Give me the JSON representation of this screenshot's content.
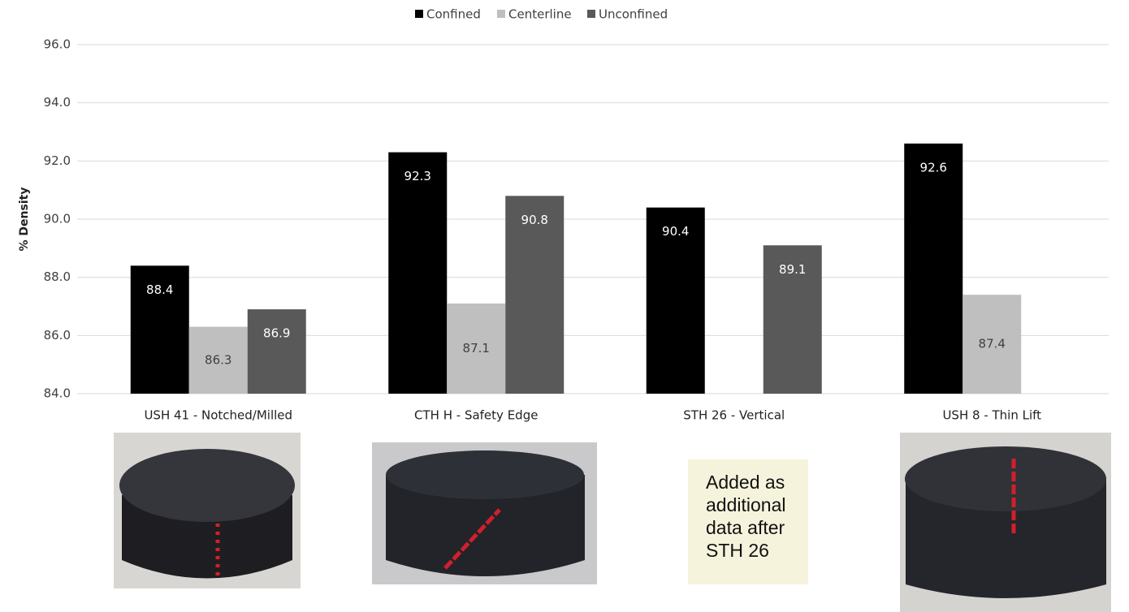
{
  "chart_data": {
    "type": "bar",
    "y_label": "% Density",
    "categories": [
      "USH 41 - Notched/Milled",
      "CTH H - Safety Edge",
      "STH 26 - Vertical",
      "USH 8 - Thin Lift"
    ],
    "series": [
      {
        "name": "Confined",
        "color": "#000000",
        "values": [
          88.4,
          92.3,
          90.4,
          92.6
        ]
      },
      {
        "name": "Centerline",
        "color": "#bfbfbf",
        "values": [
          86.3,
          87.1,
          null,
          87.4
        ]
      },
      {
        "name": "Unconfined",
        "color": "#595959",
        "values": [
          86.9,
          90.8,
          89.1,
          null
        ]
      }
    ],
    "ylim": [
      84,
      96
    ],
    "yticks": [
      {
        "value": 84,
        "label": "84.0"
      },
      {
        "value": 86,
        "label": "86.0"
      },
      {
        "value": 88,
        "label": "88.0"
      },
      {
        "value": 90,
        "label": "90.0"
      },
      {
        "value": 92,
        "label": "92.0"
      },
      {
        "value": 94,
        "label": "94.0"
      },
      {
        "value": 96,
        "label": "96.0"
      }
    ],
    "grid": true,
    "annotation": "Added as additional data after STH 26"
  }
}
